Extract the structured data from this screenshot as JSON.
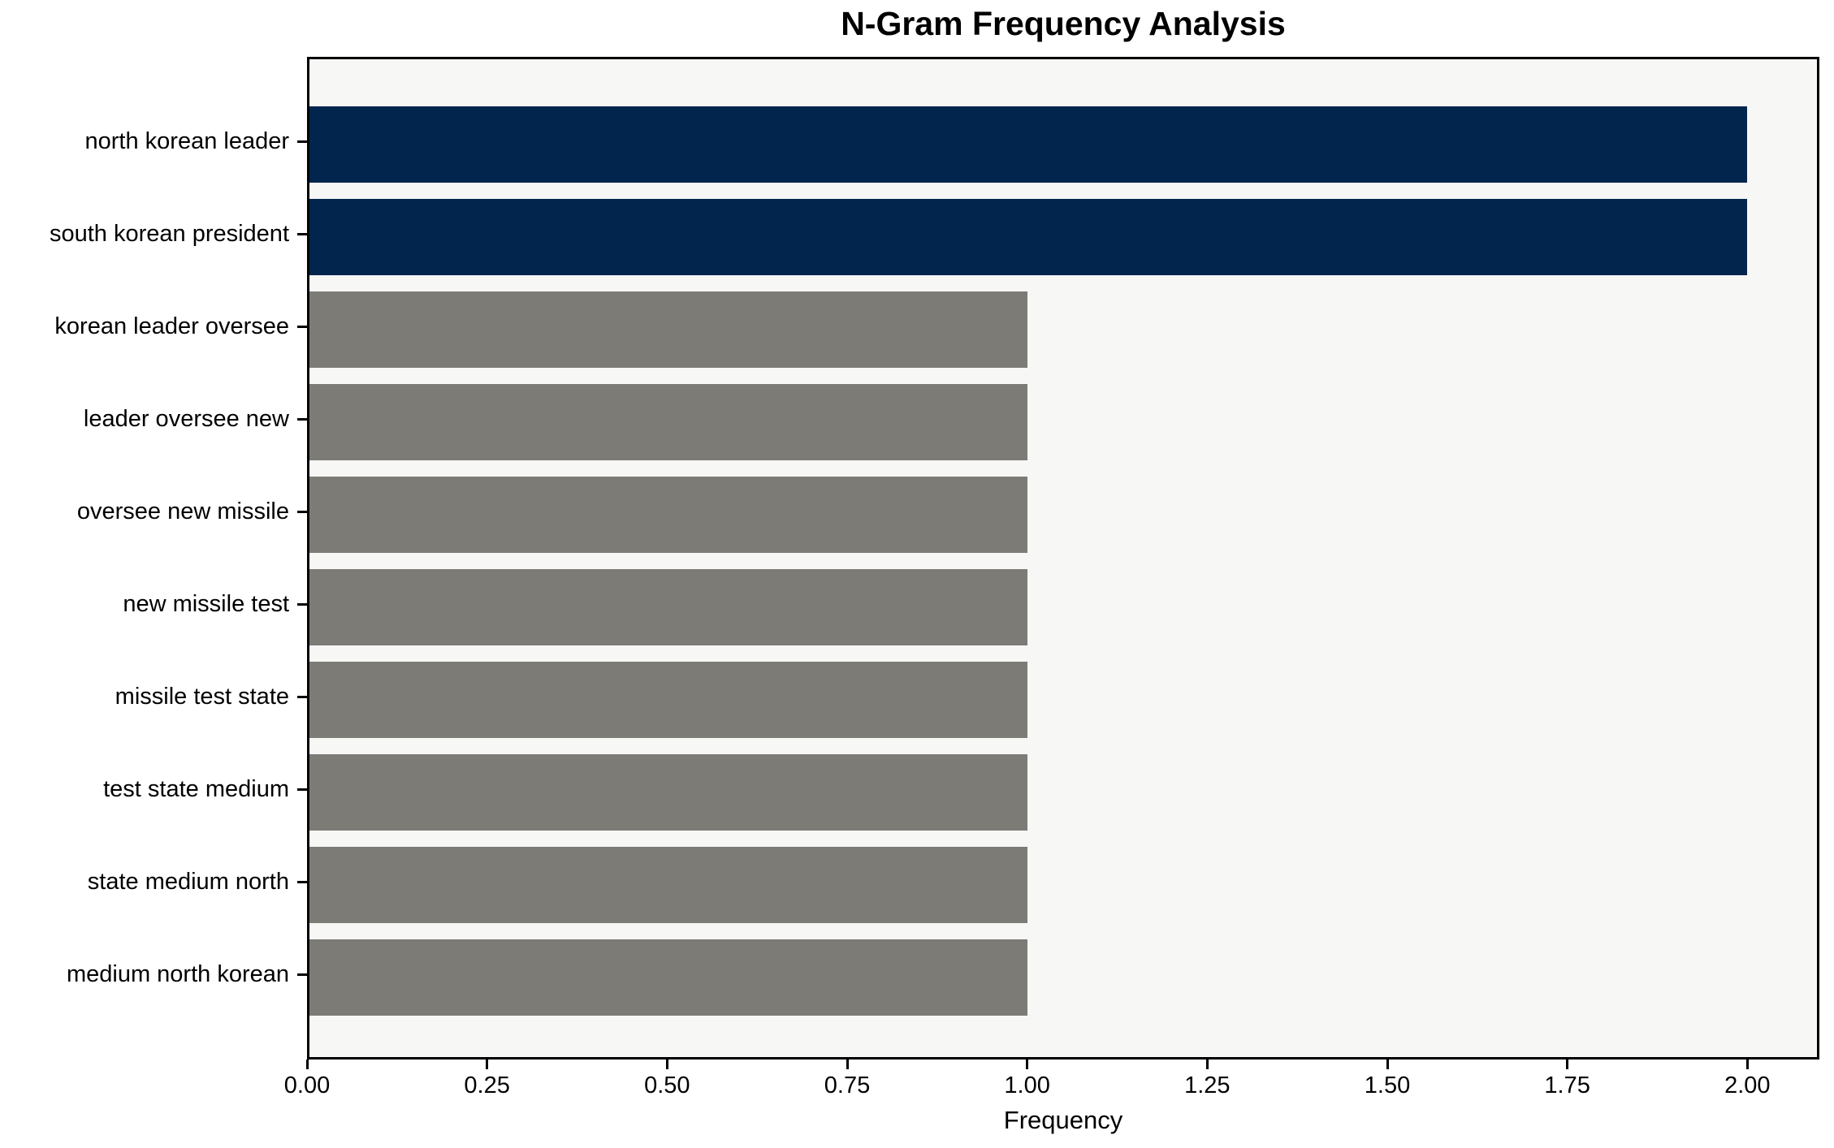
{
  "chart_data": {
    "type": "bar",
    "orientation": "horizontal",
    "title": "N-Gram Frequency Analysis",
    "xlabel": "Frequency",
    "ylabel": "",
    "categories": [
      "north korean leader",
      "south korean president",
      "korean leader oversee",
      "leader oversee new",
      "oversee new missile",
      "new missile test",
      "missile test state",
      "test state medium",
      "state medium north",
      "medium north korean"
    ],
    "values": [
      2,
      2,
      1,
      1,
      1,
      1,
      1,
      1,
      1,
      1
    ],
    "bar_colors": [
      "#02254d",
      "#02254d",
      "#7c7b76",
      "#7c7b76",
      "#7c7b76",
      "#7c7b76",
      "#7c7b76",
      "#7c7b76",
      "#7c7b76",
      "#7c7b76"
    ],
    "xlim": [
      0,
      2.1
    ],
    "xtick_values": [
      0,
      0.25,
      0.5,
      0.75,
      1.0,
      1.25,
      1.5,
      1.75,
      2.0
    ],
    "xtick_labels": [
      "0.00",
      "0.25",
      "0.50",
      "0.75",
      "1.00",
      "1.25",
      "1.50",
      "1.75",
      "2.00"
    ],
    "grid": false,
    "legend": null,
    "colors": {
      "highlight_bar": "#02254d",
      "default_bar": "#7c7b76",
      "plot_background": "#f7f7f6",
      "figure_background": "#ffffff",
      "axis_line": "#000000",
      "text": "#000000"
    }
  }
}
